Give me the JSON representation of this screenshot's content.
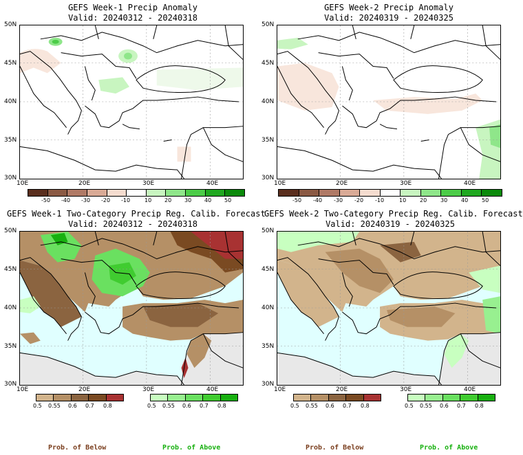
{
  "panels": [
    {
      "title": "GEFS Week-1 Precip Anomaly",
      "valid": "Valid: 20240312 - 20240318"
    },
    {
      "title": "GEFS Week-2 Precip Anomaly",
      "valid": "Valid: 20240319 - 20240325"
    },
    {
      "title": "GEFS Week-1 Two-Category Precip Reg. Calib. Forecast",
      "valid": "Valid: 20240312 - 20240318"
    },
    {
      "title": "GEFS Week-2 Two-Category Precip Reg. Calib. Forecast",
      "valid": "Valid: 20240319 - 20240325"
    }
  ],
  "lat_labels": [
    "50N",
    "45N",
    "40N",
    "35N",
    "30N"
  ],
  "lon_labels": [
    "10E",
    "20E",
    "30E",
    "40E"
  ],
  "anomaly_scale": {
    "labels": [
      "-50",
      "-40",
      "-30",
      "-20",
      "-10",
      "10",
      "20",
      "30",
      "40",
      "50"
    ],
    "colors": [
      "#5a2e1e",
      "#8b5a44",
      "#b07a66",
      "#d9aa96",
      "#f5dccf",
      "#ffffff",
      "#c8f5c0",
      "#8fe68a",
      "#4ccc48",
      "#20a820",
      "#0b8a0b"
    ]
  },
  "below_scale": {
    "labels": [
      "0.5",
      "0.55",
      "0.6",
      "0.7",
      "0.8"
    ],
    "colors": [
      "#d2b48c",
      "#b59066",
      "#8b6440",
      "#7a4a22",
      "#a83232"
    ]
  },
  "above_scale": {
    "labels": [
      "0.5",
      "0.55",
      "0.6",
      "0.7",
      "0.8"
    ],
    "colors": [
      "#c8ffc0",
      "#98f090",
      "#6ae060",
      "#40cc30",
      "#18b010"
    ]
  },
  "legend": {
    "below": "Prob. of Below",
    "above": "Prob. of Above"
  },
  "colors": {
    "below_text": "#7a3e1e",
    "above_text": "#18b010",
    "sea": "#e0ffff",
    "no_data": "#e8e8e8"
  }
}
